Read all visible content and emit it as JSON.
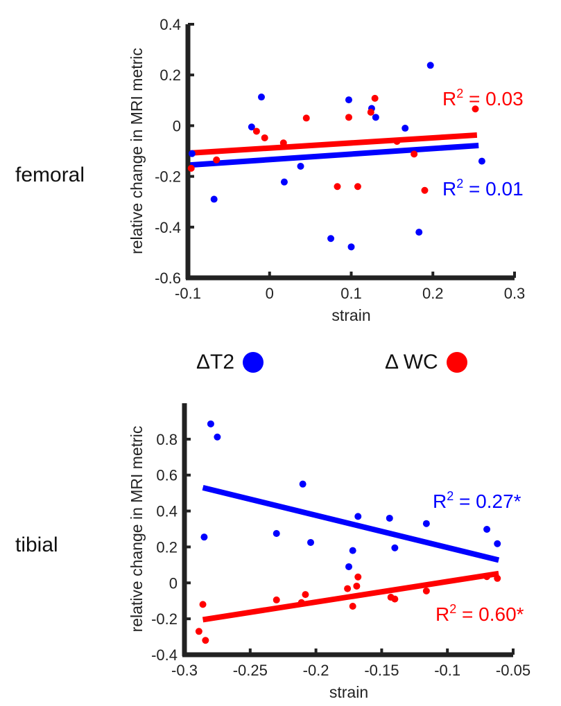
{
  "labels": {
    "femoral": "femoral",
    "tibial": "tibial"
  },
  "legend": [
    {
      "name": "ΔT2",
      "color": "#0000ff"
    },
    {
      "name": "Δ WC",
      "color": "#ff0000"
    }
  ],
  "colors": {
    "blue": "#0000ff",
    "red": "#ff0000",
    "axis": "#222222"
  },
  "chart_data": [
    {
      "type": "scatter",
      "name": "femoral",
      "xlabel": "strain",
      "ylabel": "relative change in MRI metric",
      "xlim": [
        -0.1,
        0.3
      ],
      "ylim": [
        -0.6,
        0.4
      ],
      "xticks": [
        -0.1,
        0,
        0.1,
        0.2,
        0.3
      ],
      "xtick_labels": [
        "-0.1",
        "0",
        "0.1",
        "0.2",
        "0.3"
      ],
      "yticks": [
        -0.6,
        -0.4,
        -0.2,
        0,
        0.2,
        0.4
      ],
      "ytick_labels": [
        "-0.6",
        "-0.4",
        "-0.2",
        "0",
        "0.2",
        "0.4"
      ],
      "series": [
        {
          "name": "ΔT2",
          "color": "#0000ff",
          "points": [
            [
              -0.095,
              -0.11
            ],
            [
              -0.068,
              -0.29
            ],
            [
              -0.022,
              -0.005
            ],
            [
              -0.01,
              0.113
            ],
            [
              0.018,
              -0.222
            ],
            [
              0.038,
              -0.16
            ],
            [
              0.075,
              -0.445
            ],
            [
              0.097,
              0.102
            ],
            [
              0.1,
              -0.478
            ],
            [
              0.125,
              0.068
            ],
            [
              0.13,
              0.033
            ],
            [
              0.166,
              -0.01
            ],
            [
              0.183,
              -0.42
            ],
            [
              0.197,
              0.238
            ],
            [
              0.26,
              -0.14
            ]
          ],
          "fit": {
            "x": [
              -0.097,
              0.256
            ],
            "y": [
              -0.155,
              -0.078
            ]
          },
          "annotation": {
            "prefix": "R",
            "sup": "2",
            "suffix": " = 0.01",
            "position": "right-middle"
          }
        },
        {
          "name": "Δ WC",
          "color": "#ff0000",
          "points": [
            [
              -0.096,
              -0.168
            ],
            [
              -0.065,
              -0.135
            ],
            [
              -0.016,
              -0.022
            ],
            [
              -0.006,
              -0.048
            ],
            [
              0.017,
              -0.068
            ],
            [
              0.045,
              0.03
            ],
            [
              0.083,
              -0.24
            ],
            [
              0.097,
              0.033
            ],
            [
              0.108,
              -0.24
            ],
            [
              0.124,
              0.053
            ],
            [
              0.129,
              0.108
            ],
            [
              0.156,
              -0.062
            ],
            [
              0.177,
              -0.112
            ],
            [
              0.19,
              -0.255
            ],
            [
              0.252,
              0.066
            ]
          ],
          "fit": {
            "x": [
              -0.097,
              0.254
            ],
            "y": [
              -0.108,
              -0.037
            ]
          },
          "annotation": {
            "prefix": "R",
            "sup": "2",
            "suffix": " = 0.03",
            "position": "top-right"
          }
        }
      ]
    },
    {
      "type": "scatter",
      "name": "tibial",
      "xlabel": "strain",
      "ylabel": "relative change in MRI metric",
      "xlim": [
        -0.3,
        -0.05
      ],
      "ylim": [
        -0.4,
        1.0
      ],
      "xticks": [
        -0.3,
        -0.25,
        -0.2,
        -0.15,
        -0.1,
        -0.05
      ],
      "xtick_labels": [
        "-0.3",
        "-0.25",
        "-0.2",
        "-0.15",
        "-0.1",
        "-0.05"
      ],
      "yticks": [
        -0.4,
        -0.2,
        0,
        0.2,
        0.4,
        0.6,
        0.8
      ],
      "ytick_labels": [
        "-0.4",
        "-0.2",
        "0",
        "0.2",
        "0.4",
        "0.6",
        "0.8"
      ],
      "series": [
        {
          "name": "ΔT2",
          "color": "#0000ff",
          "points": [
            [
              -0.285,
              0.255
            ],
            [
              -0.28,
              0.885
            ],
            [
              -0.275,
              0.812
            ],
            [
              -0.23,
              0.275
            ],
            [
              -0.21,
              0.55
            ],
            [
              -0.204,
              0.225
            ],
            [
              -0.175,
              0.09
            ],
            [
              -0.172,
              0.18
            ],
            [
              -0.168,
              0.37
            ],
            [
              -0.144,
              0.36
            ],
            [
              -0.14,
              0.195
            ],
            [
              -0.116,
              0.33
            ],
            [
              -0.07,
              0.298
            ],
            [
              -0.062,
              0.218
            ]
          ],
          "fit": {
            "x": [
              -0.286,
              -0.061
            ],
            "y": [
              0.53,
              0.127
            ]
          },
          "annotation": {
            "prefix": "R",
            "sup": "2",
            "suffix": " = 0.27*",
            "position": "right-upper"
          }
        },
        {
          "name": "Δ WC",
          "color": "#ff0000",
          "points": [
            [
              -0.289,
              -0.27
            ],
            [
              -0.286,
              -0.12
            ],
            [
              -0.284,
              -0.32
            ],
            [
              -0.23,
              -0.095
            ],
            [
              -0.211,
              -0.11
            ],
            [
              -0.208,
              -0.065
            ],
            [
              -0.176,
              -0.032
            ],
            [
              -0.172,
              -0.13
            ],
            [
              -0.169,
              -0.018
            ],
            [
              -0.168,
              0.033
            ],
            [
              -0.143,
              -0.08
            ],
            [
              -0.14,
              -0.09
            ],
            [
              -0.116,
              -0.045
            ],
            [
              -0.07,
              0.035
            ],
            [
              -0.062,
              0.025
            ]
          ],
          "fit": {
            "x": [
              -0.286,
              -0.061
            ],
            "y": [
              -0.205,
              0.052
            ]
          },
          "annotation": {
            "prefix": "R",
            "sup": "2",
            "suffix": " = 0.60*",
            "position": "bottom-right"
          }
        }
      ]
    }
  ]
}
